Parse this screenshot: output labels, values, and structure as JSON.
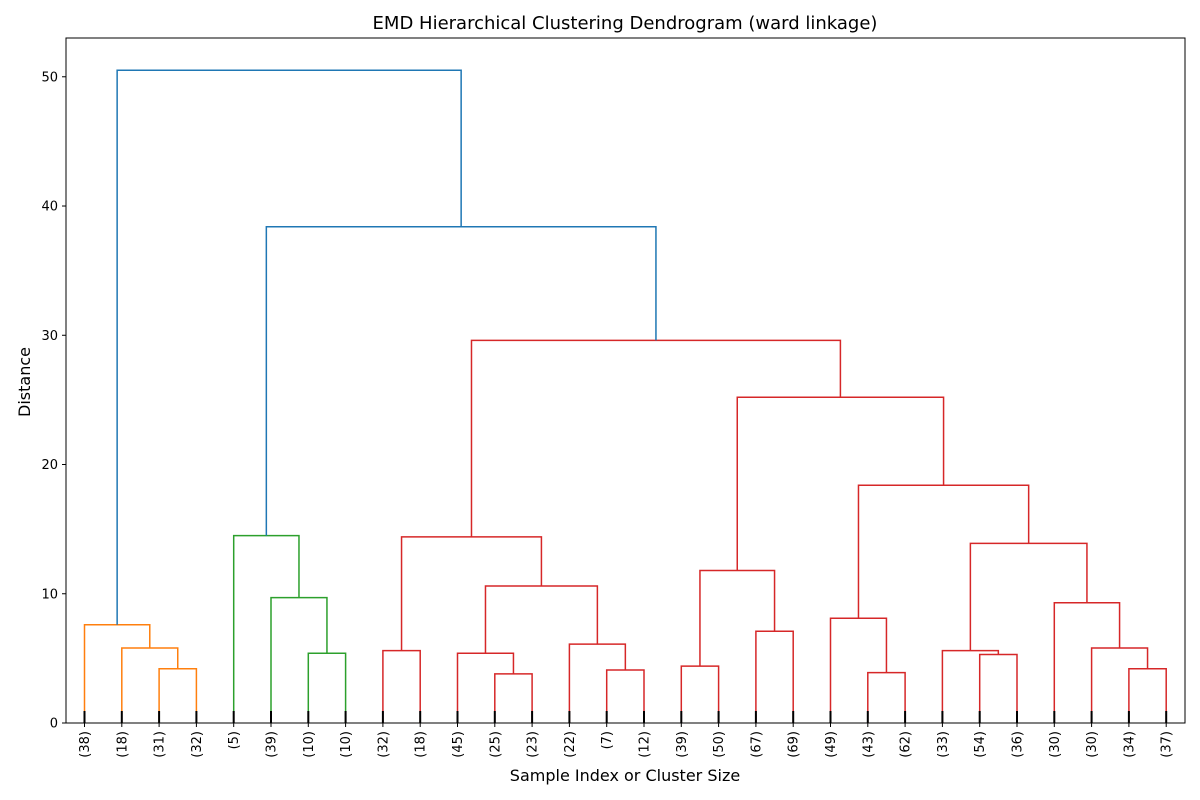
{
  "chart_data": {
    "type": "dendrogram",
    "title": "EMD Hierarchical Clustering Dendrogram (ward linkage)",
    "xlabel": "Sample Index or Cluster Size",
    "ylabel": "Distance",
    "ylim": [
      0,
      53
    ],
    "yticks": [
      0,
      10,
      20,
      30,
      40,
      50
    ],
    "grid": false,
    "colors": {
      "root": "#1f77b4",
      "cluster_orange": "#ff7f0e",
      "cluster_green": "#2ca02c",
      "cluster_red": "#d62728"
    },
    "leaves": [
      "(38)",
      "(18)",
      "(31)",
      "(32)",
      "(5)",
      "(39)",
      "(10)",
      "(10)",
      "(32)",
      "(18)",
      "(45)",
      "(25)",
      "(23)",
      "(22)",
      "(7)",
      "(12)",
      "(39)",
      "(50)",
      "(67)",
      "(69)",
      "(49)",
      "(43)",
      "(62)",
      "(33)",
      "(54)",
      "(36)",
      "(30)",
      "(30)",
      "(34)",
      "(37)"
    ],
    "merges": [
      {
        "a": "L2",
        "b": "L3",
        "height": 4.2,
        "color": "cluster_orange"
      },
      {
        "a": "L1",
        "b": "M0",
        "height": 5.8,
        "color": "cluster_orange"
      },
      {
        "a": "L0",
        "b": "M1",
        "height": 7.6,
        "color": "cluster_orange"
      },
      {
        "a": "L6",
        "b": "L7",
        "height": 5.4,
        "color": "cluster_green"
      },
      {
        "a": "L5",
        "b": "M3",
        "height": 9.7,
        "color": "cluster_green"
      },
      {
        "a": "L4",
        "b": "M4",
        "height": 14.5,
        "color": "cluster_green"
      },
      {
        "a": "L8",
        "b": "L9",
        "height": 5.6,
        "color": "cluster_red"
      },
      {
        "a": "L11",
        "b": "L12",
        "height": 3.8,
        "color": "cluster_red"
      },
      {
        "a": "L10",
        "b": "M7",
        "height": 5.4,
        "color": "cluster_red"
      },
      {
        "a": "L14",
        "b": "L15",
        "height": 4.1,
        "color": "cluster_red"
      },
      {
        "a": "L13",
        "b": "M9",
        "height": 6.1,
        "color": "cluster_red"
      },
      {
        "a": "M8",
        "b": "M10",
        "height": 10.6,
        "color": "cluster_red"
      },
      {
        "a": "M6",
        "b": "M11",
        "height": 14.4,
        "color": "cluster_red"
      },
      {
        "a": "L16",
        "b": "L17",
        "height": 4.4,
        "color": "cluster_red"
      },
      {
        "a": "L18",
        "b": "L19",
        "height": 7.1,
        "color": "cluster_red"
      },
      {
        "a": "M13",
        "b": "M14",
        "height": 11.8,
        "color": "cluster_red"
      },
      {
        "a": "L21",
        "b": "L22",
        "height": 3.9,
        "color": "cluster_red"
      },
      {
        "a": "L20",
        "b": "M16",
        "height": 8.1,
        "color": "cluster_red"
      },
      {
        "a": "L24",
        "b": "L25",
        "height": 5.3,
        "color": "cluster_red"
      },
      {
        "a": "L23",
        "b": "M18",
        "height": 5.6,
        "color": "cluster_red"
      },
      {
        "a": "L28",
        "b": "L29",
        "height": 4.2,
        "color": "cluster_red"
      },
      {
        "a": "L27",
        "b": "M20",
        "height": 5.8,
        "color": "cluster_red"
      },
      {
        "a": "L26",
        "b": "M21",
        "height": 9.3,
        "color": "cluster_red"
      },
      {
        "a": "M19",
        "b": "M22",
        "height": 13.9,
        "color": "cluster_red"
      },
      {
        "a": "M17",
        "b": "M23",
        "height": 18.4,
        "color": "cluster_red"
      },
      {
        "a": "M15",
        "b": "M24",
        "height": 25.2,
        "color": "cluster_red"
      },
      {
        "a": "M12",
        "b": "M25",
        "height": 29.6,
        "color": "cluster_red"
      },
      {
        "a": "M5",
        "b": "M26",
        "height": 38.4,
        "color": "root"
      },
      {
        "a": "M2",
        "b": "M27",
        "height": 50.5,
        "color": "root"
      }
    ]
  }
}
